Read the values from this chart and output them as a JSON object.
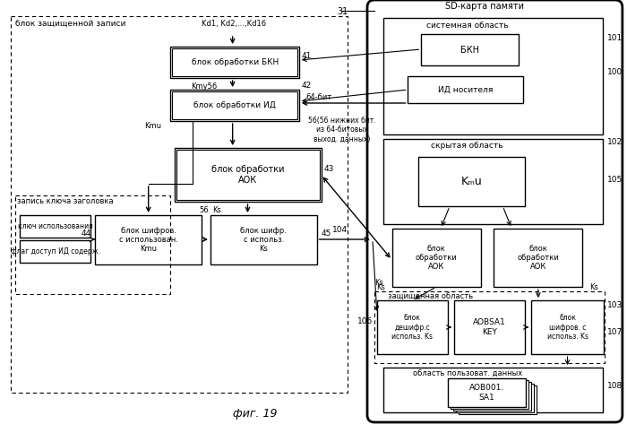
{
  "title": "фиг. 19",
  "sd_card_label": "SD-карта памяти",
  "secure_write_label": "блок защищенной записи",
  "key_header_label": "запись ключа заголовка",
  "bg_color": "#ffffff"
}
